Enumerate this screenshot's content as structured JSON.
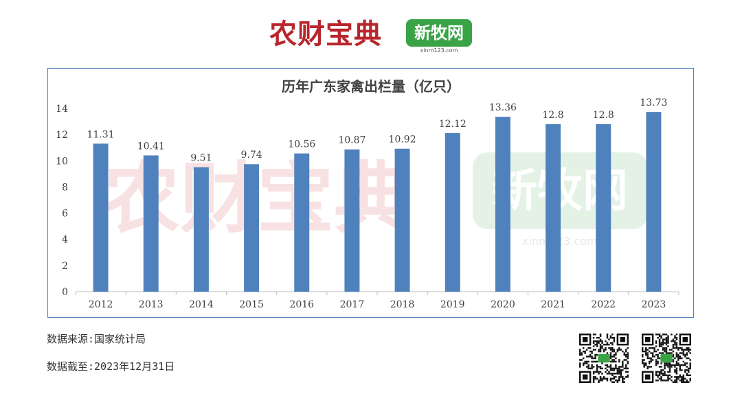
{
  "logos": {
    "left_text": "农财宝典",
    "right_text": "新牧网",
    "right_url": "xinm123.com",
    "red": "#b8262c",
    "green": "#3aa346"
  },
  "watermark": {
    "left_text": "农财宝典",
    "right_text": "新牧网",
    "right_url": "xinm123.com"
  },
  "chart_data": {
    "type": "bar",
    "title": "历年广东家禽出栏量（亿只）",
    "categories": [
      "2012",
      "2013",
      "2014",
      "2015",
      "2016",
      "2017",
      "2018",
      "2019",
      "2020",
      "2021",
      "2022",
      "2023"
    ],
    "values": [
      11.31,
      10.41,
      9.51,
      9.74,
      10.56,
      10.87,
      10.92,
      12.12,
      13.36,
      12.8,
      12.8,
      13.73
    ],
    "data_labels": [
      "11.31",
      "10.41",
      "9.51",
      "9.74",
      "10.56",
      "10.87",
      "10.92",
      "12.12",
      "13.36",
      "12.8",
      "12.8",
      "13.73"
    ],
    "ylim": [
      0,
      14
    ],
    "yticks": [
      "0",
      "2",
      "4",
      "6",
      "8",
      "10",
      "12",
      "14"
    ],
    "grid": false,
    "bar_color": "#4f81bd"
  },
  "footer": {
    "source": "数据来源:国家统计局",
    "date": "数据截至:2023年12月31日"
  },
  "qr_codes": [
    "qr-code-icon",
    "qr-code-icon"
  ]
}
